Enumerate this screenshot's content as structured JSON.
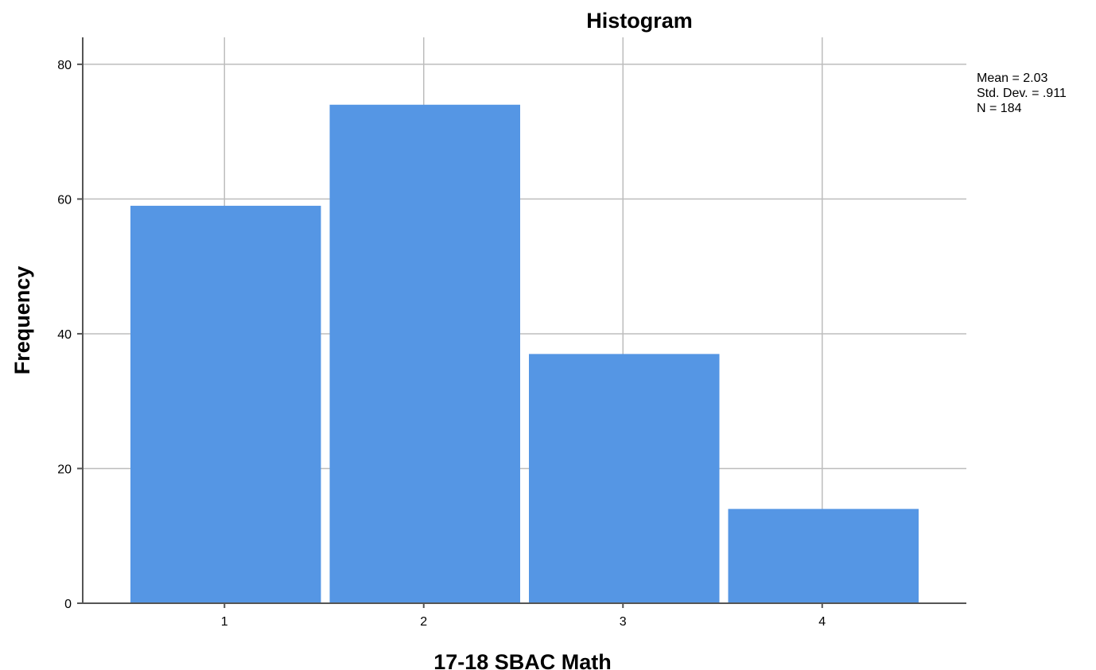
{
  "chart_data": {
    "type": "bar",
    "title": "Histogram",
    "xlabel": "17-18 SBAC Math",
    "ylabel": "Frequency",
    "categories": [
      "1",
      "2",
      "3",
      "4"
    ],
    "values": [
      59,
      74,
      37,
      14
    ],
    "ylim": [
      0,
      84
    ],
    "yticks": [
      "0",
      "20",
      "40",
      "60",
      "80"
    ],
    "grid": true,
    "bar_color": "#5596e4",
    "stats": {
      "mean": "Mean = 2.03",
      "std_dev": "Std. Dev. = .911",
      "n": "N = 184"
    },
    "stats_placement": "top-right"
  }
}
